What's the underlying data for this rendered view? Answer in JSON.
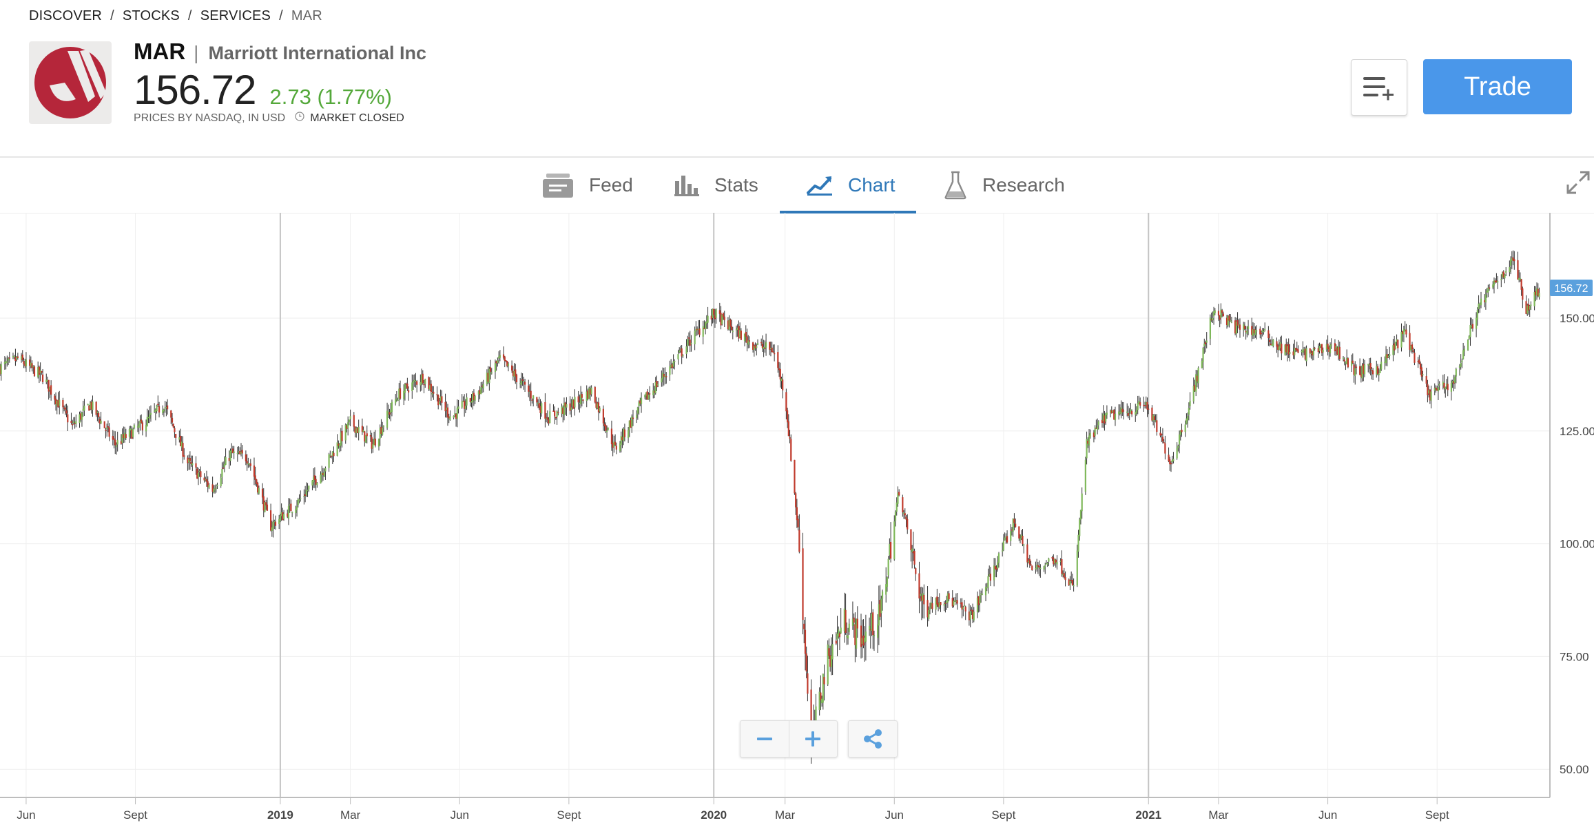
{
  "breadcrumb": {
    "items": [
      "DISCOVER",
      "STOCKS",
      "SERVICES"
    ],
    "current": "MAR",
    "separator": "/"
  },
  "instrument": {
    "ticker": "MAR",
    "separator": "|",
    "company": "Marriott International Inc",
    "price": "156.72",
    "change": "2.73 (1.77%)",
    "source": "PRICES BY NASDAQ, IN USD",
    "market_status": "MARKET CLOSED"
  },
  "actions": {
    "watchlist_icon": "add-to-watchlist-icon",
    "trade_label": "Trade"
  },
  "tabs": [
    {
      "label": "Feed",
      "icon": "feed-icon",
      "active": false
    },
    {
      "label": "Stats",
      "icon": "stats-icon",
      "active": false
    },
    {
      "label": "Chart",
      "icon": "chart-icon",
      "active": true
    },
    {
      "label": "Research",
      "icon": "flask-icon",
      "active": false
    }
  ],
  "colors": {
    "accent": "#2f78b8",
    "trade": "#4a97ea",
    "up": "#7fb85a",
    "down": "#c0392b",
    "change": "#54a83a",
    "price_label": "#5aa0dd",
    "logo": "#b5263a"
  },
  "chart_data": {
    "type": "candlestick",
    "current_price_label": "156.72",
    "y_ticks": [
      "150.00",
      "125.00",
      "100.00",
      "75.00",
      "50.00"
    ],
    "y_tick_values": [
      150,
      125,
      100,
      75,
      50
    ],
    "ylim": [
      45,
      170
    ],
    "x_ticks": [
      {
        "label": "Jun",
        "date": "2018-06-01",
        "major": false
      },
      {
        "label": "Sept",
        "date": "2018-09-01",
        "major": false
      },
      {
        "label": "2019",
        "date": "2019-01-01",
        "major": true
      },
      {
        "label": "Mar",
        "date": "2019-03-01",
        "major": false
      },
      {
        "label": "Jun",
        "date": "2019-06-01",
        "major": false
      },
      {
        "label": "Sept",
        "date": "2019-09-01",
        "major": false
      },
      {
        "label": "2020",
        "date": "2020-01-01",
        "major": true
      },
      {
        "label": "Mar",
        "date": "2020-03-01",
        "major": false
      },
      {
        "label": "Jun",
        "date": "2020-06-01",
        "major": false
      },
      {
        "label": "Sept",
        "date": "2020-09-01",
        "major": false
      },
      {
        "label": "2021",
        "date": "2021-01-01",
        "major": true
      },
      {
        "label": "Mar",
        "date": "2021-03-01",
        "major": false
      },
      {
        "label": "Jun",
        "date": "2021-06-01",
        "major": false
      },
      {
        "label": "Sept",
        "date": "2021-09-01",
        "major": false
      }
    ],
    "xlim": [
      "2018-05-10",
      "2021-12-05"
    ],
    "grid": true,
    "close_path": [
      [
        "2018-05-10",
        139
      ],
      [
        "2018-05-25",
        141
      ],
      [
        "2018-06-15",
        137
      ],
      [
        "2018-07-10",
        126
      ],
      [
        "2018-07-25",
        131
      ],
      [
        "2018-08-15",
        122
      ],
      [
        "2018-09-10",
        127
      ],
      [
        "2018-09-25",
        131
      ],
      [
        "2018-10-15",
        118
      ],
      [
        "2018-11-05",
        112
      ],
      [
        "2018-11-20",
        120
      ],
      [
        "2018-12-05",
        119
      ],
      [
        "2018-12-24",
        104
      ],
      [
        "2019-01-15",
        109
      ],
      [
        "2019-02-05",
        116
      ],
      [
        "2019-03-01",
        127
      ],
      [
        "2019-03-20",
        122
      ],
      [
        "2019-04-10",
        133
      ],
      [
        "2019-05-01",
        137
      ],
      [
        "2019-05-25",
        128
      ],
      [
        "2019-06-15",
        133
      ],
      [
        "2019-07-05",
        141
      ],
      [
        "2019-07-25",
        135
      ],
      [
        "2019-08-15",
        128
      ],
      [
        "2019-09-05",
        131
      ],
      [
        "2019-09-20",
        134
      ],
      [
        "2019-10-10",
        121
      ],
      [
        "2019-11-01",
        131
      ],
      [
        "2019-11-25",
        139
      ],
      [
        "2019-12-15",
        146
      ],
      [
        "2020-01-01",
        151
      ],
      [
        "2020-01-20",
        147
      ],
      [
        "2020-02-05",
        144
      ],
      [
        "2020-02-20",
        143
      ],
      [
        "2020-03-01",
        133
      ],
      [
        "2020-03-12",
        103
      ],
      [
        "2020-03-23",
        55
      ],
      [
        "2020-04-05",
        74
      ],
      [
        "2020-04-20",
        83
      ],
      [
        "2020-05-05",
        79
      ],
      [
        "2020-05-20",
        84
      ],
      [
        "2020-06-05",
        112
      ],
      [
        "2020-06-25",
        86
      ],
      [
        "2020-07-15",
        88
      ],
      [
        "2020-08-05",
        84
      ],
      [
        "2020-08-25",
        95
      ],
      [
        "2020-09-10",
        105
      ],
      [
        "2020-09-25",
        94
      ],
      [
        "2020-10-15",
        97
      ],
      [
        "2020-10-30",
        90
      ],
      [
        "2020-11-10",
        122
      ],
      [
        "2020-11-25",
        128
      ],
      [
        "2020-12-10",
        129
      ],
      [
        "2020-12-30",
        131
      ],
      [
        "2021-01-20",
        118
      ],
      [
        "2021-02-05",
        131
      ],
      [
        "2021-02-25",
        152
      ],
      [
        "2021-03-15",
        148
      ],
      [
        "2021-04-05",
        147
      ],
      [
        "2021-04-25",
        143
      ],
      [
        "2021-05-15",
        142
      ],
      [
        "2021-06-05",
        144
      ],
      [
        "2021-06-25",
        138
      ],
      [
        "2021-07-15",
        139
      ],
      [
        "2021-08-05",
        147
      ],
      [
        "2021-08-25",
        133
      ],
      [
        "2021-09-15",
        136
      ],
      [
        "2021-10-05",
        152
      ],
      [
        "2021-10-20",
        158
      ],
      [
        "2021-11-05",
        163
      ],
      [
        "2021-11-15",
        152
      ],
      [
        "2021-11-26",
        156.72
      ]
    ]
  }
}
